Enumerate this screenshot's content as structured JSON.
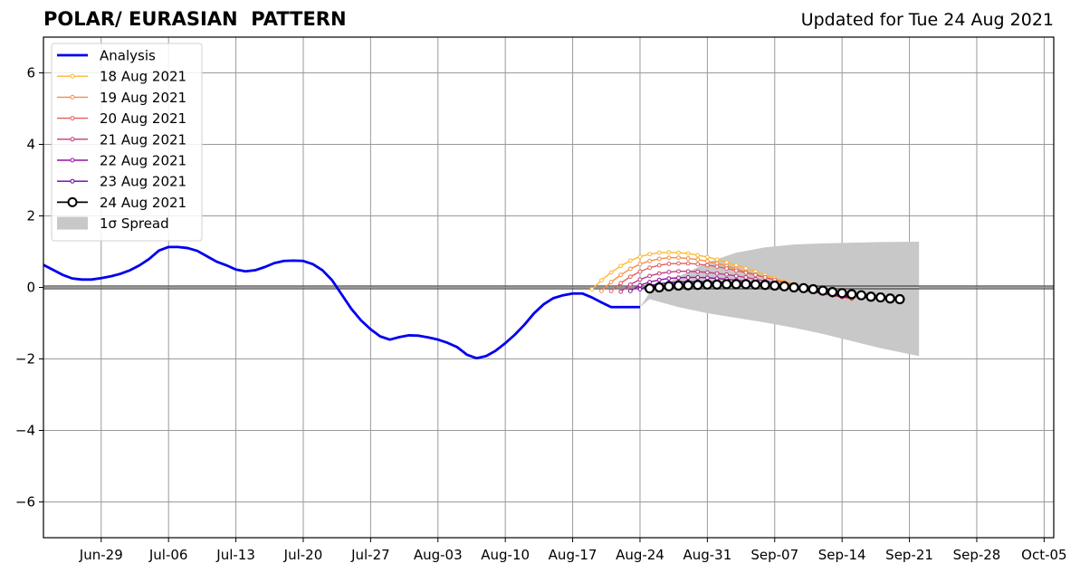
{
  "title": "POLAR/ EURASIAN  PATTERN",
  "updated": "Updated for Tue 24 Aug 2021",
  "chart_data": {
    "type": "line",
    "title": "POLAR/ EURASIAN  PATTERN",
    "xlabel": "",
    "ylabel": "",
    "ylim": [
      -7,
      7
    ],
    "xlim": [
      "2021-06-23",
      "2021-10-06"
    ],
    "grid": true,
    "legend_position": "top-left",
    "x_ticks": [
      "Jun-29",
      "Jul-06",
      "Jul-13",
      "Jul-20",
      "Jul-27",
      "Aug-03",
      "Aug-10",
      "Aug-17",
      "Aug-24",
      "Aug-31",
      "Sep-07",
      "Sep-14",
      "Sep-21",
      "Sep-28",
      "Oct-05"
    ],
    "y_ticks": [
      -6,
      -4,
      -2,
      0,
      2,
      4,
      6
    ],
    "y_tick_labels": [
      "−6",
      "−4",
      "−2",
      "0",
      "2",
      "4",
      "6"
    ],
    "legend": [
      {
        "label": "Analysis",
        "color": "#0000ee",
        "kind": "line"
      },
      {
        "label": "18 Aug 2021",
        "color": "#fdb72e",
        "kind": "marker"
      },
      {
        "label": "19 Aug 2021",
        "color": "#f68d45",
        "kind": "marker"
      },
      {
        "label": "20 Aug 2021",
        "color": "#de5f65",
        "kind": "marker"
      },
      {
        "label": "21 Aug 2021",
        "color": "#c03a83",
        "kind": "marker"
      },
      {
        "label": "22 Aug 2021",
        "color": "#9511a1",
        "kind": "marker"
      },
      {
        "label": "23 Aug 2021",
        "color": "#6a00a8",
        "kind": "marker"
      },
      {
        "label": "24 Aug 2021",
        "color": "#000000",
        "kind": "circle"
      },
      {
        "label": "1σ Spread",
        "color": "#c8c8c8",
        "kind": "patch"
      }
    ],
    "analysis": {
      "name": "Analysis",
      "x": [
        "2021-06-23",
        "2021-06-25",
        "2021-06-26",
        "2021-06-27",
        "2021-06-28",
        "2021-06-29",
        "2021-06-30",
        "2021-07-01",
        "2021-07-02",
        "2021-07-03",
        "2021-07-04",
        "2021-07-05",
        "2021-07-06",
        "2021-07-07",
        "2021-07-08",
        "2021-07-09",
        "2021-07-10",
        "2021-07-11",
        "2021-07-12",
        "2021-07-13",
        "2021-07-14",
        "2021-07-15",
        "2021-07-16",
        "2021-07-17",
        "2021-07-18",
        "2021-07-19",
        "2021-07-20",
        "2021-07-21",
        "2021-07-22",
        "2021-07-23",
        "2021-07-24",
        "2021-07-25",
        "2021-07-26",
        "2021-07-27",
        "2021-07-28",
        "2021-07-29",
        "2021-07-30",
        "2021-07-31",
        "2021-08-01",
        "2021-08-02",
        "2021-08-03",
        "2021-08-04",
        "2021-08-05",
        "2021-08-06",
        "2021-08-07",
        "2021-08-08",
        "2021-08-09",
        "2021-08-10",
        "2021-08-11",
        "2021-08-12",
        "2021-08-13",
        "2021-08-14",
        "2021-08-15",
        "2021-08-16",
        "2021-08-17",
        "2021-08-18",
        "2021-08-19",
        "2021-08-20",
        "2021-08-21",
        "2021-08-22",
        "2021-08-23",
        "2021-08-24"
      ],
      "y": [
        0.63,
        0.35,
        0.25,
        0.22,
        0.22,
        0.26,
        0.31,
        0.38,
        0.48,
        0.62,
        0.8,
        1.03,
        1.13,
        1.13,
        1.1,
        1.02,
        0.87,
        0.72,
        0.62,
        0.5,
        0.45,
        0.48,
        0.57,
        0.68,
        0.74,
        0.75,
        0.74,
        0.65,
        0.48,
        0.2,
        -0.2,
        -0.6,
        -0.92,
        -1.17,
        -1.37,
        -1.46,
        -1.39,
        -1.34,
        -1.35,
        -1.4,
        -1.46,
        -1.55,
        -1.67,
        -1.88,
        -1.98,
        -1.92,
        -1.77,
        -1.56,
        -1.32,
        -1.04,
        -0.72,
        -0.47,
        -0.3,
        -0.22,
        -0.17,
        -0.17,
        -0.28,
        -0.42,
        -0.55,
        -0.55,
        -0.55,
        -0.55
      ]
    },
    "forecasts": [
      {
        "name": "18 Aug 2021",
        "color": "#fdb72e",
        "start": "2021-08-19",
        "y": [
          -0.05,
          0.2,
          0.42,
          0.6,
          0.75,
          0.86,
          0.93,
          0.97,
          0.98,
          0.97,
          0.95,
          0.9,
          0.85,
          0.78,
          0.7,
          0.62,
          0.53,
          0.44,
          0.35,
          0.26,
          0.17,
          0.09,
          0.01,
          -0.06,
          -0.13,
          -0.2,
          -0.25,
          -0.3
        ]
      },
      {
        "name": "19 Aug 2021",
        "color": "#f68d45",
        "start": "2021-08-20",
        "y": [
          -0.1,
          0.15,
          0.35,
          0.52,
          0.65,
          0.74,
          0.8,
          0.83,
          0.83,
          0.81,
          0.78,
          0.73,
          0.67,
          0.6,
          0.52,
          0.44,
          0.36,
          0.28,
          0.2,
          0.12,
          0.04,
          -0.03,
          -0.1,
          -0.17,
          -0.23,
          -0.28,
          -0.32
        ]
      },
      {
        "name": "20 Aug 2021",
        "color": "#de5f65",
        "start": "2021-08-21",
        "y": [
          -0.1,
          0.12,
          0.3,
          0.44,
          0.55,
          0.62,
          0.66,
          0.67,
          0.67,
          0.65,
          0.62,
          0.58,
          0.53,
          0.47,
          0.41,
          0.35,
          0.28,
          0.21,
          0.14,
          0.07,
          0.0,
          -0.06,
          -0.12,
          -0.18,
          -0.24,
          -0.29
        ]
      },
      {
        "name": "21 Aug 2021",
        "color": "#c03a83",
        "start": "2021-08-22",
        "y": [
          -0.12,
          0.08,
          0.22,
          0.32,
          0.39,
          0.43,
          0.45,
          0.45,
          0.44,
          0.42,
          0.39,
          0.36,
          0.32,
          0.28,
          0.23,
          0.18,
          0.13,
          0.07,
          0.02,
          -0.04,
          -0.09,
          -0.14,
          -0.19,
          -0.24,
          -0.28
        ]
      },
      {
        "name": "22 Aug 2021",
        "color": "#9511a1",
        "start": "2021-08-23",
        "y": [
          -0.1,
          0.06,
          0.15,
          0.21,
          0.25,
          0.27,
          0.28,
          0.28,
          0.27,
          0.25,
          0.23,
          0.2,
          0.17,
          0.13,
          0.09,
          0.05,
          0.01,
          -0.04,
          -0.08,
          -0.13,
          -0.17,
          -0.22,
          -0.26,
          -0.3
        ]
      },
      {
        "name": "23 Aug 2021",
        "color": "#6a00a8",
        "start": "2021-08-24",
        "y": [
          -0.05,
          0.05,
          0.1,
          0.13,
          0.15,
          0.16,
          0.16,
          0.16,
          0.15,
          0.14,
          0.12,
          0.1,
          0.08,
          0.06,
          0.03,
          0.0,
          -0.03,
          -0.07,
          -0.11,
          -0.15,
          -0.19,
          -0.23,
          -0.27
        ]
      },
      {
        "name": "24 Aug 2021",
        "color": "#000000",
        "start": "2021-08-25",
        "y": [
          -0.03,
          0.0,
          0.03,
          0.05,
          0.06,
          0.07,
          0.08,
          0.08,
          0.09,
          0.09,
          0.09,
          0.08,
          0.07,
          0.05,
          0.03,
          0.0,
          -0.02,
          -0.05,
          -0.09,
          -0.13,
          -0.16,
          -0.19,
          -0.22,
          -0.26,
          -0.28,
          -0.31,
          -0.33
        ]
      }
    ],
    "spread": {
      "name": "1σ Spread",
      "x": [
        "2021-08-24",
        "2021-08-25",
        "2021-08-28",
        "2021-08-31",
        "2021-09-03",
        "2021-09-06",
        "2021-09-09",
        "2021-09-12",
        "2021-09-15",
        "2021-09-18",
        "2021-09-22"
      ],
      "upper": [
        -0.55,
        -0.15,
        0.3,
        0.7,
        0.97,
        1.12,
        1.2,
        1.23,
        1.25,
        1.27,
        1.28
      ],
      "lower": [
        -0.55,
        -0.33,
        -0.55,
        -0.72,
        -0.85,
        -0.98,
        -1.13,
        -1.3,
        -1.5,
        -1.7,
        -1.92
      ]
    }
  }
}
